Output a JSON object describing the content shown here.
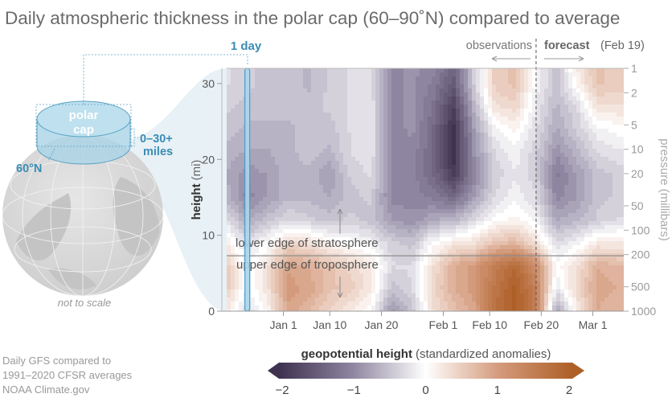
{
  "title": "Daily atmospheric thickness in the polar cap (60–90˚N) compared to average",
  "inset": {
    "cap_label_line1": "polar",
    "cap_label_line2": "cap",
    "depth_line1": "0–30+",
    "depth_line2": "miles",
    "latitude_label": "60°N",
    "scale_note": "not to scale",
    "one_day_label": "1 day"
  },
  "annotations": {
    "observations": "observations",
    "forecast": "forecast",
    "forecast_date": "(Feb 19)",
    "stratosphere": "lower edge of stratosphere",
    "troposphere": "upper edge of troposphere"
  },
  "credits": {
    "line1": "Daily GFS compared to",
    "line2": "1991–2020 CFSR averages",
    "line3": "NOAA Climate.gov"
  },
  "colors": {
    "negative_max": "#3f3250",
    "negative_mid": "#8e85a0",
    "zero": "#ffffff",
    "positive_mid": "#d49a7c",
    "positive_max": "#ae5f26",
    "accent_blue": "#3a8db5"
  },
  "chart_data": {
    "type": "heatmap",
    "title": "",
    "xlabel": "",
    "ylabel": "height",
    "ylabel_unit": "(mi)",
    "y2label": "pressure (millibars)",
    "x_range": [
      "Dec 21",
      "Mar 7"
    ],
    "ylim": [
      0,
      32
    ],
    "x_ticks": [
      "Jan 1",
      "Jan 10",
      "Jan 20",
      "Feb 1",
      "Feb 10",
      "Feb 20",
      "Mar 1"
    ],
    "y_ticks": [
      "0",
      "10",
      "20",
      "30"
    ],
    "y2_ticks": [
      "1",
      "2",
      "5",
      "10",
      "20",
      "50",
      "100",
      "200",
      "500",
      "1000"
    ],
    "forecast_start": "Feb 19",
    "tropopause_height_mi": 7.3,
    "selected_day": "Dec 25",
    "colorbar": {
      "title": "geopotential height",
      "title_suffix": "(standardized anomalies)",
      "ticks": [
        "−2",
        "−1",
        "0",
        "1",
        "2"
      ],
      "range": [
        -2,
        2
      ],
      "extend": "both"
    },
    "heights_mi": [
      0,
      3,
      6,
      9,
      12,
      15,
      18,
      21,
      24,
      27,
      30,
      32
    ],
    "columns": [
      {
        "date": "Dec 21",
        "values": [
          0.2,
          0.5,
          0.5,
          0.2,
          -0.3,
          -0.6,
          -0.7,
          -0.6,
          -0.5,
          -0.4,
          -0.3,
          -0.3
        ]
      },
      {
        "date": "Dec 25",
        "values": [
          -0.3,
          -0.1,
          -0.1,
          -0.3,
          -0.7,
          -1.0,
          -0.9,
          -0.7,
          -0.6,
          -0.5,
          -0.4,
          -0.4
        ]
      },
      {
        "date": "Dec 29",
        "values": [
          0.1,
          0.3,
          0.3,
          0.0,
          -0.5,
          -0.8,
          -0.8,
          -0.7,
          -0.6,
          -0.5,
          -0.5,
          -0.5
        ]
      },
      {
        "date": "Jan 2",
        "values": [
          0.9,
          1.0,
          0.9,
          0.4,
          -0.3,
          -0.6,
          -0.6,
          -0.6,
          -0.6,
          -0.5,
          -0.5,
          -0.5
        ]
      },
      {
        "date": "Jan 6",
        "values": [
          0.7,
          0.9,
          0.8,
          0.3,
          -0.4,
          -0.6,
          -0.6,
          -0.5,
          -0.5,
          -0.5,
          -0.6,
          -0.6
        ]
      },
      {
        "date": "Jan 10",
        "values": [
          0.4,
          0.6,
          0.6,
          0.1,
          -0.5,
          -0.7,
          -0.8,
          -0.6,
          -0.5,
          -0.4,
          -0.4,
          -0.4
        ]
      },
      {
        "date": "Jan 14",
        "values": [
          0.2,
          0.5,
          0.4,
          0.0,
          -0.4,
          -0.5,
          -0.4,
          -0.3,
          -0.3,
          -0.3,
          -0.3,
          -0.3
        ]
      },
      {
        "date": "Jan 18",
        "values": [
          0.0,
          0.2,
          0.2,
          -0.1,
          -0.5,
          -0.4,
          -0.3,
          -0.2,
          -0.2,
          -0.2,
          -0.3,
          -0.3
        ]
      },
      {
        "date": "Jan 22",
        "values": [
          -0.9,
          -0.5,
          -0.3,
          -0.4,
          -0.8,
          -1.0,
          -1.0,
          -1.0,
          -1.0,
          -1.0,
          -1.0,
          -1.0
        ]
      },
      {
        "date": "Jan 26",
        "values": [
          -0.5,
          -0.3,
          -0.3,
          -0.5,
          -0.9,
          -1.0,
          -1.0,
          -1.0,
          -0.9,
          -0.9,
          -0.9,
          -0.9
        ]
      },
      {
        "date": "Jan 30",
        "values": [
          0.3,
          0.4,
          0.3,
          0.0,
          -0.7,
          -1.1,
          -1.3,
          -1.3,
          -1.3,
          -1.2,
          -1.1,
          -1.0
        ]
      },
      {
        "date": "Feb 3",
        "values": [
          0.6,
          0.8,
          0.8,
          0.2,
          -0.6,
          -1.3,
          -1.9,
          -2.0,
          -2.0,
          -1.8,
          -1.5,
          -1.4
        ]
      },
      {
        "date": "Feb 7",
        "values": [
          0.9,
          1.0,
          1.0,
          0.3,
          -0.3,
          -0.8,
          -1.0,
          -0.9,
          -0.8,
          -0.6,
          -0.4,
          -0.4
        ]
      },
      {
        "date": "Feb 11",
        "values": [
          1.7,
          1.6,
          1.5,
          0.6,
          0.0,
          -0.3,
          -0.4,
          -0.3,
          -0.1,
          0.3,
          0.5,
          0.5
        ]
      },
      {
        "date": "Feb 15",
        "values": [
          2.0,
          2.0,
          1.8,
          0.7,
          0.1,
          -0.1,
          -0.2,
          -0.1,
          0.1,
          0.4,
          0.6,
          0.6
        ]
      },
      {
        "date": "Feb 19",
        "values": [
          1.5,
          1.4,
          1.2,
          0.3,
          -0.1,
          -0.3,
          -0.4,
          -0.4,
          -0.3,
          -0.2,
          -0.1,
          -0.1
        ]
      },
      {
        "date": "Feb 23",
        "values": [
          -0.8,
          -0.2,
          0.0,
          -0.3,
          -0.7,
          -1.0,
          -1.1,
          -0.9,
          -0.7,
          -0.6,
          -0.5,
          -0.5
        ]
      },
      {
        "date": "Feb 27",
        "values": [
          0.2,
          0.4,
          0.3,
          -0.1,
          -0.6,
          -0.8,
          -0.8,
          -0.6,
          -0.4,
          -0.3,
          0.1,
          0.2
        ]
      },
      {
        "date": "Mar 2",
        "values": [
          0.8,
          0.9,
          0.8,
          0.2,
          -0.4,
          -0.5,
          -0.5,
          -0.3,
          -0.1,
          0.3,
          0.6,
          0.6
        ]
      },
      {
        "date": "Mar 6",
        "values": [
          0.7,
          0.8,
          0.7,
          0.2,
          -0.3,
          -0.4,
          -0.4,
          -0.2,
          0.0,
          0.3,
          0.5,
          0.5
        ]
      }
    ]
  }
}
